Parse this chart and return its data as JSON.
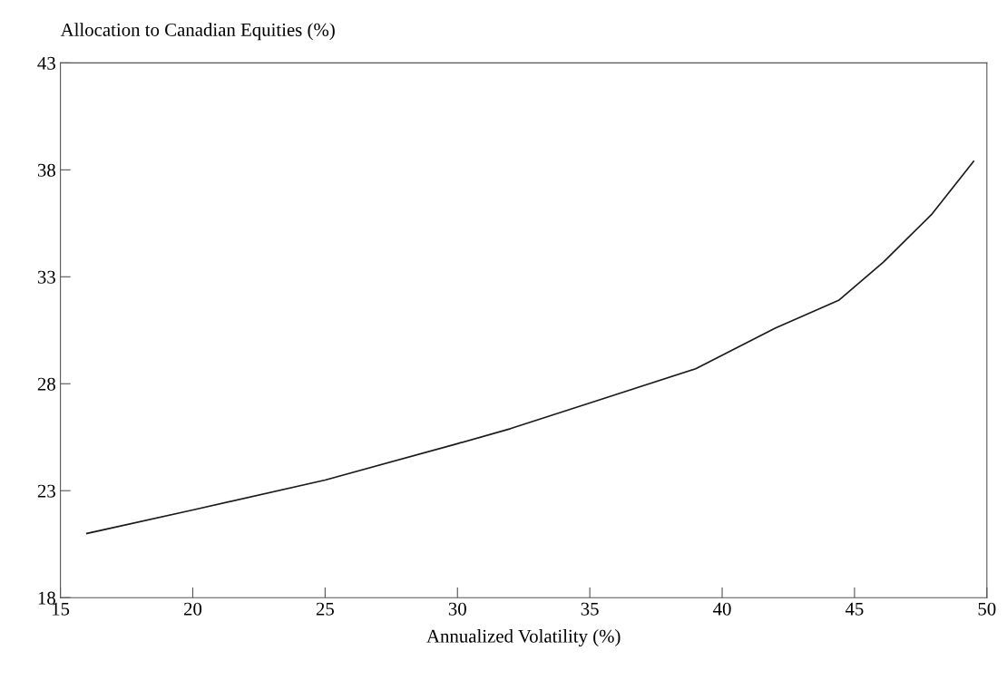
{
  "chart_data": {
    "type": "line",
    "ylabel": "Allocation to Canadian Equities (%)",
    "xlabel": "Annualized Volatility (%)",
    "series": [
      {
        "color": "#1a1a1a",
        "x": [
          16.0,
          20,
          25,
          30,
          32,
          35,
          39,
          42,
          44.4,
          46.1,
          47.9,
          49.5
        ],
        "values": [
          21.0,
          22.1,
          23.5,
          25.2,
          25.9,
          27.1,
          28.7,
          30.6,
          31.9,
          33.7,
          35.9,
          38.4
        ]
      }
    ],
    "xlim": [
      15,
      50
    ],
    "xticks": [
      15,
      20,
      25,
      30,
      35,
      40,
      45,
      50
    ],
    "ylim": [
      18,
      43
    ],
    "yticks": [
      18,
      23,
      28,
      33,
      38,
      43
    ],
    "grid": false,
    "legend": false,
    "marker": "none",
    "line_style": "solid"
  }
}
